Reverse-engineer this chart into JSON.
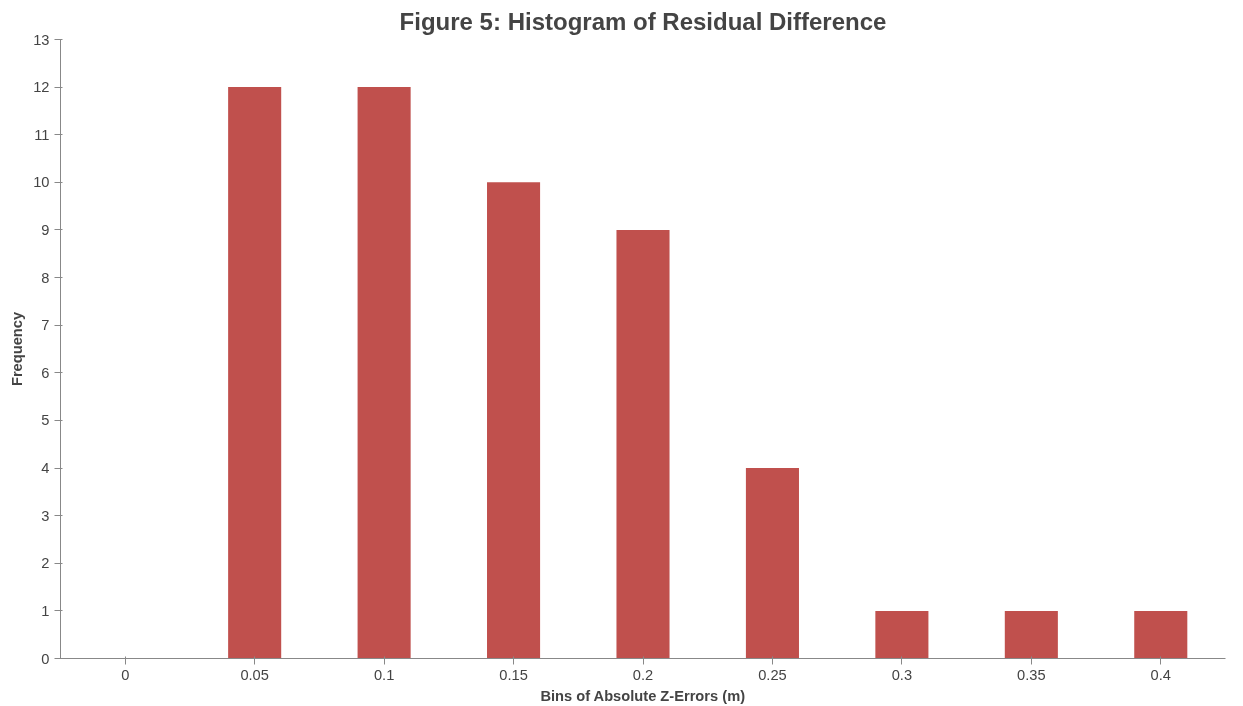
{
  "chart_data": {
    "type": "bar",
    "title": "Figure 5: Histogram of Residual Difference",
    "xlabel": "Bins of Absolute Z-Errors (m)",
    "ylabel": "Frequency",
    "categories": [
      "0",
      "0.05",
      "0.1",
      "0.15",
      "0.2",
      "0.25",
      "0.3",
      "0.35",
      "0.4"
    ],
    "values": [
      0,
      12,
      12,
      10,
      9,
      4,
      1,
      1,
      1
    ],
    "color": "#c0504d",
    "ylim": [
      0,
      13
    ],
    "yticks": [
      0,
      1,
      2,
      3,
      4,
      5,
      6,
      7,
      8,
      9,
      10,
      11,
      12,
      13
    ],
    "grid": false
  }
}
